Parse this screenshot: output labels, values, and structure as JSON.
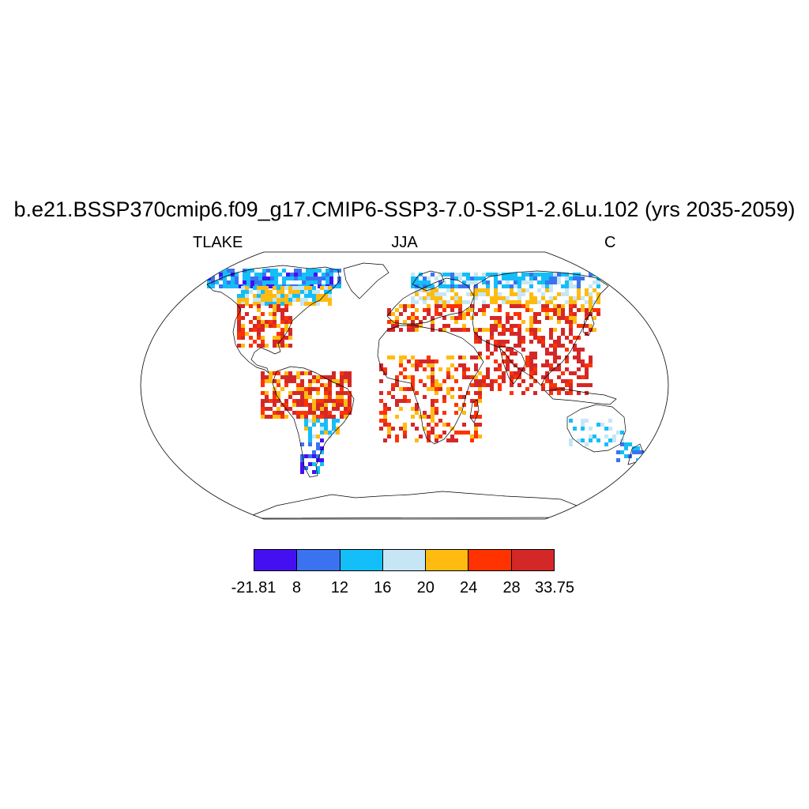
{
  "title": "b.e21.BSSP370cmip6.f09_g17.CMIP6-SSP3-7.0-SSP1-2.6Lu.102 (yrs 2035-2059)",
  "left_label": "TLAKE",
  "center_label": "JJA",
  "right_label": "C",
  "colorbar": {
    "colors": [
      "#4410f2",
      "#3a72f0",
      "#14bef8",
      "#c6e6f6",
      "#ffbb10",
      "#ff3300",
      "#d42828"
    ],
    "labels": [
      "-21.81",
      "8",
      "12",
      "16",
      "20",
      "24",
      "28",
      "33.75"
    ]
  },
  "map": {
    "projection": "Robinson",
    "field": "lake temperature",
    "units": "C"
  }
}
